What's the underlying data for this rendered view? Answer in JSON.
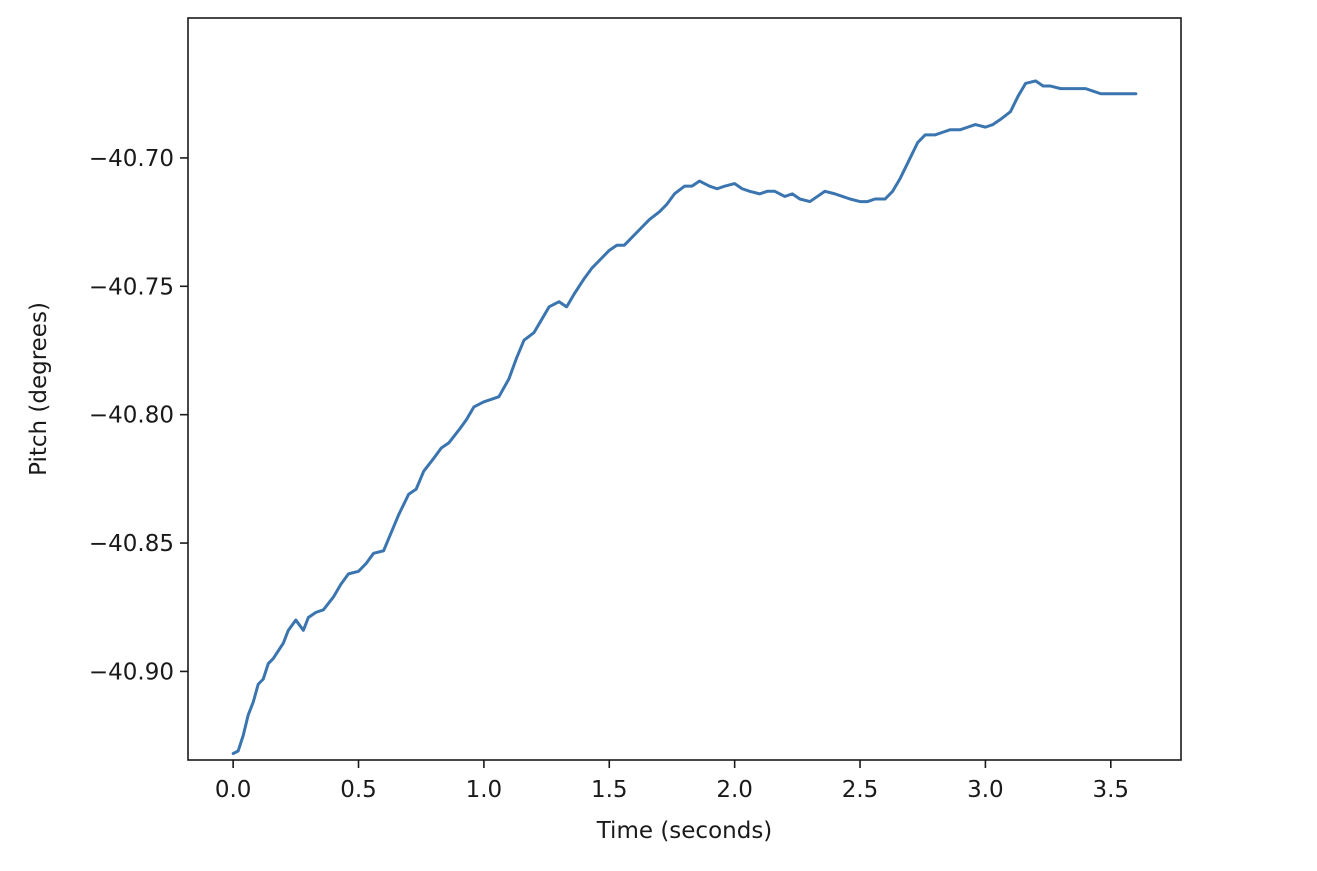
{
  "chart_data": {
    "type": "line",
    "title": "",
    "xlabel": "Time (seconds)",
    "ylabel": "Pitch (degrees)",
    "xlim": [
      -0.18,
      3.78
    ],
    "ylim": [
      -40.9345,
      -40.6455
    ],
    "x_ticks": [
      0.0,
      0.5,
      1.0,
      1.5,
      2.0,
      2.5,
      3.0,
      3.5
    ],
    "x_tick_labels": [
      "0.0",
      "0.5",
      "1.0",
      "1.5",
      "2.0",
      "2.5",
      "3.0",
      "3.5"
    ],
    "y_ticks": [
      -40.9,
      -40.85,
      -40.8,
      -40.75,
      -40.7
    ],
    "y_tick_labels": [
      "−40.90",
      "−40.85",
      "−40.80",
      "−40.75",
      "−40.70"
    ],
    "grid": false,
    "legend": "none",
    "line_color": "#3b75af",
    "series": [
      {
        "x": [
          0.0,
          0.02,
          0.04,
          0.06,
          0.08,
          0.1,
          0.12,
          0.14,
          0.16,
          0.18,
          0.2,
          0.22,
          0.25,
          0.28,
          0.3,
          0.33,
          0.36,
          0.4,
          0.43,
          0.46,
          0.5,
          0.53,
          0.56,
          0.6,
          0.63,
          0.66,
          0.7,
          0.73,
          0.76,
          0.8,
          0.83,
          0.86,
          0.9,
          0.93,
          0.96,
          1.0,
          1.03,
          1.06,
          1.1,
          1.13,
          1.16,
          1.2,
          1.23,
          1.26,
          1.3,
          1.33,
          1.36,
          1.4,
          1.43,
          1.46,
          1.5,
          1.53,
          1.56,
          1.6,
          1.63,
          1.66,
          1.7,
          1.73,
          1.76,
          1.8,
          1.83,
          1.86,
          1.9,
          1.93,
          1.96,
          2.0,
          2.03,
          2.06,
          2.1,
          2.13,
          2.16,
          2.2,
          2.23,
          2.26,
          2.3,
          2.33,
          2.36,
          2.4,
          2.43,
          2.46,
          2.5,
          2.53,
          2.56,
          2.6,
          2.63,
          2.66,
          2.7,
          2.73,
          2.76,
          2.8,
          2.83,
          2.86,
          2.9,
          2.93,
          2.96,
          3.0,
          3.03,
          3.06,
          3.1,
          3.13,
          3.16,
          3.2,
          3.23,
          3.26,
          3.3,
          3.33,
          3.36,
          3.4,
          3.43,
          3.46,
          3.5,
          3.53,
          3.56,
          3.58,
          3.6
        ],
        "y": [
          -40.932,
          -40.931,
          -40.925,
          -40.917,
          -40.912,
          -40.905,
          -40.903,
          -40.897,
          -40.895,
          -40.892,
          -40.889,
          -40.884,
          -40.88,
          -40.884,
          -40.879,
          -40.877,
          -40.876,
          -40.871,
          -40.866,
          -40.862,
          -40.861,
          -40.858,
          -40.854,
          -40.853,
          -40.846,
          -40.839,
          -40.831,
          -40.829,
          -40.822,
          -40.817,
          -40.813,
          -40.811,
          -40.806,
          -40.802,
          -40.797,
          -40.795,
          -40.794,
          -40.793,
          -40.786,
          -40.778,
          -40.771,
          -40.768,
          -40.763,
          -40.758,
          -40.756,
          -40.758,
          -40.753,
          -40.747,
          -40.743,
          -40.74,
          -40.736,
          -40.734,
          -40.734,
          -40.73,
          -40.727,
          -40.724,
          -40.721,
          -40.718,
          -40.714,
          -40.711,
          -40.711,
          -40.709,
          -40.711,
          -40.712,
          -40.711,
          -40.71,
          -40.712,
          -40.713,
          -40.714,
          -40.713,
          -40.713,
          -40.715,
          -40.714,
          -40.716,
          -40.717,
          -40.715,
          -40.713,
          -40.714,
          -40.715,
          -40.716,
          -40.717,
          -40.717,
          -40.716,
          -40.716,
          -40.713,
          -40.708,
          -40.7,
          -40.694,
          -40.691,
          -40.691,
          -40.69,
          -40.689,
          -40.689,
          -40.688,
          -40.687,
          -40.688,
          -40.687,
          -40.685,
          -40.682,
          -40.676,
          -40.671,
          -40.67,
          -40.672,
          -40.672,
          -40.673,
          -40.673,
          -40.673,
          -40.673,
          -40.674,
          -40.675,
          -40.675,
          -40.675,
          -40.675,
          -40.675,
          -40.675
        ]
      }
    ]
  }
}
